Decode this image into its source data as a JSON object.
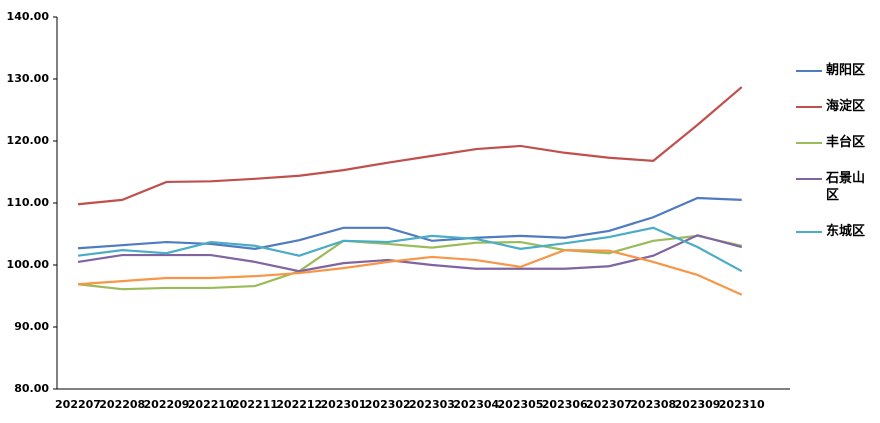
{
  "chart_data": {
    "type": "line",
    "categories": [
      "202207",
      "202208",
      "202209",
      "202210",
      "202211",
      "202212",
      "202301",
      "202302",
      "202303",
      "202304",
      "202305",
      "202306",
      "202307",
      "202308",
      "202309",
      "202310"
    ],
    "ylim": [
      80,
      140
    ],
    "yticks": [
      {
        "value": 80,
        "label": "80.00"
      },
      {
        "value": 90,
        "label": "90.00"
      },
      {
        "value": 100,
        "label": "100.00"
      },
      {
        "value": 110,
        "label": "110.00"
      },
      {
        "value": 120,
        "label": "120.00"
      },
      {
        "value": 130,
        "label": "130.00"
      },
      {
        "value": 140,
        "label": "140.00"
      }
    ],
    "series": [
      {
        "name": "朝阳区",
        "color": "#4f7bbf",
        "values": [
          102.7,
          103.2,
          103.7,
          103.4,
          102.6,
          104.0,
          106.0,
          106.0,
          103.9,
          104.4,
          104.7,
          104.4,
          105.5,
          107.7,
          110.8,
          110.5
        ]
      },
      {
        "name": "海淀区",
        "color": "#c0504d",
        "values": [
          109.8,
          110.5,
          113.4,
          113.5,
          113.9,
          114.4,
          115.3,
          116.5,
          117.6,
          118.7,
          119.2,
          118.1,
          117.3,
          116.8,
          122.6,
          128.7
        ]
      },
      {
        "name": "丰台区",
        "color": "#9bbb59",
        "values": [
          96.9,
          96.1,
          96.3,
          96.3,
          96.6,
          99.0,
          103.9,
          103.4,
          102.8,
          103.6,
          103.7,
          102.4,
          101.9,
          103.9,
          104.7,
          103.1
        ]
      },
      {
        "name": "石景山区",
        "color": "#8064a2",
        "values": [
          100.5,
          101.6,
          101.6,
          101.6,
          100.5,
          99.0,
          100.3,
          100.8,
          100.0,
          99.4,
          99.4,
          99.4,
          99.8,
          101.5,
          104.8,
          102.9
        ]
      },
      {
        "name": "东城区",
        "color": "#4bacc6",
        "values": [
          101.5,
          102.4,
          101.9,
          103.7,
          103.1,
          101.5,
          103.9,
          103.7,
          104.7,
          104.2,
          102.6,
          103.5,
          104.5,
          106.0,
          102.9,
          99.0
        ]
      },
      {
        "color": "#f79646",
        "values": [
          96.9,
          97.4,
          97.9,
          97.9,
          98.2,
          98.7,
          99.5,
          100.5,
          101.3,
          100.8,
          99.7,
          102.4,
          102.3,
          100.5,
          98.4,
          95.2
        ]
      }
    ]
  }
}
